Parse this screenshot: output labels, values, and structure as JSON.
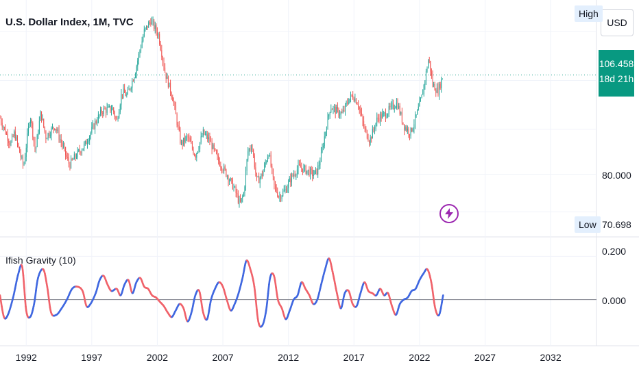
{
  "header": {
    "title": "U.S. Dollar Index, 1M, TVC",
    "currency_button": "USD",
    "high_label": "High",
    "low_label": "Low"
  },
  "price_axis": {
    "current_price": "106.458",
    "countdown": "18d 21h",
    "tick_80": "80.000",
    "low_value": "70.698"
  },
  "indicator": {
    "title": "Ifish Gravity (10)",
    "tick_top": "0.200",
    "tick_zero": "0.000"
  },
  "colors": {
    "up": "#26a69a",
    "down": "#ef5350",
    "osc_up": "#3f67e0",
    "osc_down": "#f0626a",
    "price_line": "#089981",
    "bolt": "#9c27b0"
  },
  "icons": {
    "alert": "lightning-bolt-icon"
  },
  "chart_data": [
    {
      "type": "candlestick",
      "title": "U.S. Dollar Index, 1M, TVC",
      "xlabel": "",
      "ylabel": "",
      "x_ticks": [
        "1992",
        "1997",
        "2002",
        "2007",
        "2012",
        "2017",
        "2022",
        "2027",
        "2032"
      ],
      "y_ticks": [
        "80.000"
      ],
      "xlim": [
        1990.0,
        2035.5
      ],
      "ylim": [
        67.0,
        123.5
      ],
      "last_price": 106.458,
      "high_marker": 120.9,
      "low_marker": 70.698,
      "close_path": {
        "x": [
          1990.0,
          1990.8,
          1991.1,
          1991.8,
          1992.3,
          1992.7,
          1993.1,
          1993.5,
          1994.2,
          1995.3,
          1995.8,
          1996.5,
          1997.3,
          1997.8,
          1998.6,
          1998.9,
          1999.3,
          1999.7,
          2000.3,
          2000.6,
          2001.0,
          2001.5,
          2002.1,
          2002.6,
          2003.2,
          2003.8,
          2004.3,
          2004.9,
          2005.5,
          2006.0,
          2006.6,
          2007.3,
          2007.9,
          2008.3,
          2008.6,
          2008.9,
          2009.2,
          2009.6,
          2010.0,
          2010.5,
          2010.9,
          2011.3,
          2011.8,
          2012.2,
          2012.8,
          2013.4,
          2013.9,
          2014.2,
          2014.5,
          2014.8,
          2015.2,
          2015.6,
          2016.1,
          2016.6,
          2016.9,
          2017.3,
          2017.8,
          2018.2,
          2018.8,
          2019.4,
          2019.9,
          2020.3,
          2020.8,
          2021.3,
          2021.8,
          2022.2,
          2022.7,
          2023.0,
          2023.4,
          2023.8
        ],
        "values": [
          95.0,
          88.0,
          91.0,
          82.0,
          96.0,
          86.0,
          96.5,
          90.0,
          93.0,
          82.5,
          85.0,
          88.0,
          94.0,
          97.0,
          97.5,
          94.0,
          102.0,
          101.0,
          107.0,
          112.0,
          118.0,
          121.0,
          117.0,
          107.0,
          100.0,
          88.0,
          90.0,
          85.0,
          91.0,
          89.0,
          84.0,
          80.0,
          76.0,
          72.0,
          75.0,
          86.0,
          88.0,
          78.0,
          80.0,
          86.0,
          77.0,
          74.0,
          76.0,
          79.0,
          82.0,
          81.0,
          80.0,
          81.0,
          85.0,
          91.0,
          98.0,
          97.0,
          96.0,
          100.0,
          101.0,
          99.0,
          92.0,
          89.0,
          95.0,
          96.0,
          98.0,
          99.0,
          93.0,
          91.0,
          96.0,
          101.0,
          111.0,
          104.0,
          102.0,
          106.458
        ]
      }
    },
    {
      "type": "line",
      "title": "Ifish Gravity (10)",
      "xlabel": "",
      "ylabel": "",
      "y_ticks": [
        "0.200",
        "0.000"
      ],
      "ylim": [
        -0.14,
        0.22
      ],
      "baseline": 0.0,
      "series": [
        {
          "x": [
            1990.0,
            1990.3,
            1990.6,
            1991.0,
            1991.4,
            1991.7,
            1992.0,
            1992.3,
            1992.6,
            1992.9,
            1993.3,
            1993.6,
            1993.9,
            1994.3,
            1994.7,
            1995.1,
            1995.5,
            1995.9,
            1996.3,
            1996.6,
            1996.9,
            1997.3,
            1997.6,
            1997.9,
            1998.2,
            1998.5,
            1998.9,
            1999.2,
            1999.5,
            1999.8,
            2000.1,
            2000.4,
            2000.7,
            2001.0,
            2001.3,
            2001.6,
            2001.9,
            2002.2,
            2002.5,
            2002.8,
            2003.1,
            2003.4,
            2003.7,
            2004.0,
            2004.3,
            2004.6,
            2004.9,
            2005.2,
            2005.5,
            2005.8,
            2006.1,
            2006.4,
            2006.7,
            2007.0,
            2007.3,
            2007.6,
            2007.9,
            2008.2,
            2008.5,
            2008.8,
            2009.1,
            2009.4,
            2009.7,
            2010.0,
            2010.3,
            2010.6,
            2010.9,
            2011.2,
            2011.5,
            2011.8,
            2012.1,
            2012.4,
            2012.7,
            2013.0,
            2013.3,
            2013.6,
            2013.9,
            2014.2,
            2014.5,
            2014.8,
            2015.1,
            2015.4,
            2015.7,
            2016.0,
            2016.3,
            2016.6,
            2016.9,
            2017.2,
            2017.5,
            2017.8,
            2018.1,
            2018.4,
            2018.7,
            2019.0,
            2019.3,
            2019.6,
            2019.9,
            2020.2,
            2020.5,
            2020.8,
            2021.1,
            2021.4,
            2021.7,
            2022.0,
            2022.3,
            2022.6,
            2022.9,
            2023.2,
            2023.5,
            2023.8
          ],
          "values": [
            0.02,
            -0.08,
            -0.07,
            0.01,
            0.12,
            0.15,
            -0.05,
            -0.08,
            -0.02,
            0.1,
            0.14,
            0.06,
            -0.06,
            -0.07,
            -0.04,
            0.0,
            0.05,
            0.06,
            0.04,
            -0.03,
            -0.02,
            0.03,
            0.09,
            0.11,
            0.07,
            0.04,
            0.05,
            0.02,
            0.07,
            0.09,
            0.03,
            0.08,
            0.1,
            0.06,
            0.05,
            0.02,
            0.01,
            -0.01,
            -0.03,
            -0.06,
            -0.08,
            -0.05,
            -0.02,
            -0.04,
            -0.1,
            -0.06,
            0.02,
            0.04,
            -0.06,
            -0.09,
            0.0,
            0.05,
            0.08,
            0.06,
            0.0,
            -0.05,
            -0.02,
            0.03,
            0.1,
            0.18,
            0.14,
            0.06,
            -0.1,
            -0.12,
            -0.05,
            0.1,
            0.11,
            0.0,
            -0.04,
            -0.09,
            -0.05,
            0.0,
            0.02,
            0.08,
            0.05,
            0.02,
            -0.02,
            0.0,
            0.07,
            0.14,
            0.19,
            0.12,
            0.03,
            -0.04,
            0.03,
            0.04,
            -0.02,
            -0.03,
            0.03,
            0.08,
            0.04,
            0.03,
            0.02,
            0.05,
            0.02,
            0.03,
            -0.03,
            -0.07,
            -0.02,
            0.0,
            0.01,
            0.04,
            0.05,
            0.09,
            0.12,
            0.14,
            0.08,
            -0.04,
            -0.07,
            0.02
          ]
        }
      ]
    }
  ]
}
